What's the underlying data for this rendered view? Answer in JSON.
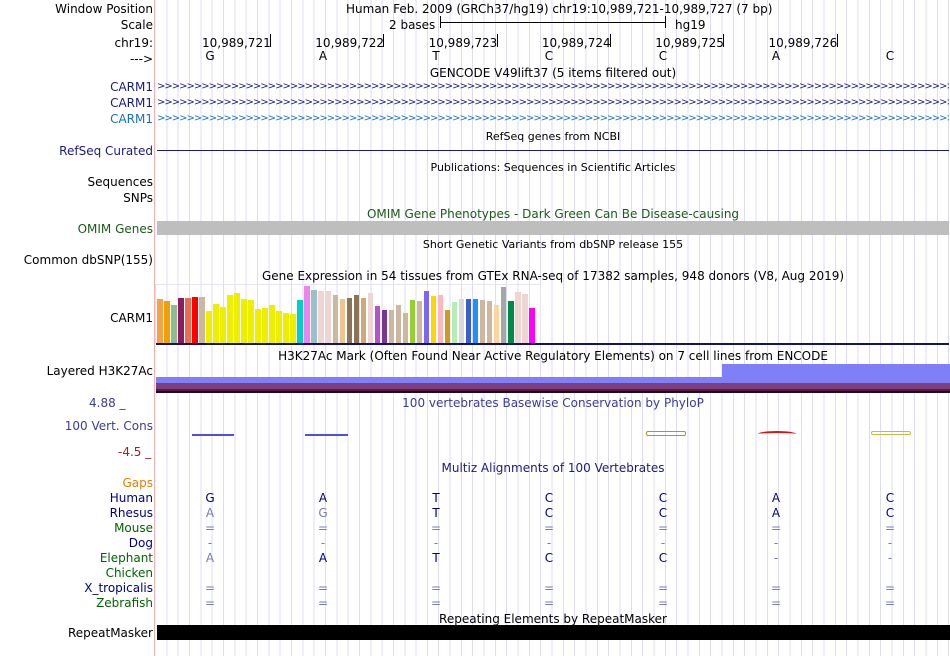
{
  "header": {
    "position_label": "Window Position",
    "position_text": "Human Feb. 2009 (GRCh37/hg19)   chr19:10,989,721-10,989,727 (7 bp)",
    "scale_label": "Scale",
    "scale_text": "2 bases",
    "scale_assembly": "hg19",
    "chrom_label": "chr19:",
    "strand_label": "--->",
    "ticks": [
      "10,989,721",
      "10,989,722",
      "10,989,723",
      "10,989,724",
      "10,989,725",
      "10,989,726"
    ],
    "bases": [
      "G",
      "A",
      "T",
      "C",
      "C",
      "A",
      "C"
    ]
  },
  "gencode": {
    "title": "GENCODE V49lift37 (5 items filtered out)",
    "items": [
      {
        "label": "CARM1",
        "color": "#1a1a80"
      },
      {
        "label": "CARM1",
        "color": "#1a1a80"
      },
      {
        "label": "CARM1",
        "color": "#1a70c0"
      }
    ]
  },
  "refseq": {
    "title": "RefSeq genes from NCBI",
    "label": "RefSeq Curated"
  },
  "pubs": {
    "title": "Publications: Sequences in Scientific Articles",
    "labels": [
      "Sequences",
      "SNPs"
    ]
  },
  "omim": {
    "title": "OMIM Gene Phenotypes - Dark Green Can Be Disease-causing",
    "label": "OMIM Genes"
  },
  "dbsnp": {
    "title": "Short Genetic Variants from dbSNP release 155",
    "label": "Common dbSNP(155)"
  },
  "gtex": {
    "title": "Gene Expression in 54 tissues from GTEx RNA-seq of 17382 samples, 948 donors (V8, Aug 2019)",
    "label": "CARM1",
    "values": [
      46,
      44,
      40,
      47,
      47,
      48,
      48,
      34,
      41,
      38,
      50,
      52,
      46,
      45,
      36,
      37,
      40,
      34,
      32,
      31,
      45,
      59,
      55,
      54,
      54,
      50,
      46,
      47,
      50,
      47,
      52,
      39,
      35,
      35,
      40,
      32,
      45,
      44,
      54,
      49,
      50,
      35,
      43,
      46,
      46,
      46,
      45,
      44,
      40,
      58,
      44,
      53,
      51,
      37
    ],
    "colors": [
      "#f9a04d",
      "#f0a000",
      "#8fbc8f",
      "#8b1c62",
      "#ee6a50",
      "#ff0000",
      "#cdb79e",
      "#eeee00",
      "#eeee00",
      "#eeee00",
      "#eeee00",
      "#eeee00",
      "#eeee00",
      "#eeee00",
      "#eeee00",
      "#eeee00",
      "#eeee00",
      "#eeee00",
      "#eeee00",
      "#eeee00",
      "#00cdcd",
      "#ee82ee",
      "#9ac0cd",
      "#eed5d2",
      "#eed5d2",
      "#cdb79e",
      "#eec591",
      "#8b7355",
      "#8b7355",
      "#cdaa7d",
      "#eed5d2",
      "#b452cd",
      "#7a378b",
      "#cdb79e",
      "#cdb79e",
      "#cdb79e",
      "#9acd32",
      "#cdb79e",
      "#7b68ee",
      "#ffd700",
      "#ffb6c1",
      "#cd9b1d",
      "#b4eeb4",
      "#d9d9d9",
      "#3a5fcd",
      "#1e90ff",
      "#cdb79e",
      "#cdb79e",
      "#ffd39b",
      "#a6a6a6",
      "#008b45",
      "#eed5d2",
      "#eed5d2",
      "#ff00ff"
    ]
  },
  "h3k27ac": {
    "title": "H3K27Ac Mark (Often Found Near Active Regulatory Elements) on 7 cell lines from ENCODE",
    "label": "Layered H3K27Ac"
  },
  "phylop": {
    "title": "100 vertebrates Basewise Conservation by PhyloP",
    "label": "100 Vert. Cons",
    "max": "4.88 _",
    "min": "-4.5 _"
  },
  "multiz": {
    "title": "Multiz Alignments of 100 Vertebrates",
    "gaps_label": "Gaps",
    "species": [
      {
        "name": "Human",
        "color": "#000080",
        "bases": [
          "G",
          "A",
          "T",
          "C",
          "C",
          "A",
          "C"
        ],
        "light": []
      },
      {
        "name": "Rhesus",
        "color": "#000080",
        "bases": [
          "A",
          "G",
          "T",
          "C",
          "C",
          "A",
          "C"
        ],
        "light": [
          0,
          1
        ]
      },
      {
        "name": "Mouse",
        "color": "#006400",
        "bases": [
          "=",
          "=",
          "=",
          "=",
          "=",
          "=",
          "="
        ],
        "light": [
          0,
          1,
          2,
          3,
          4,
          5,
          6
        ]
      },
      {
        "name": "Dog",
        "color": "#000080",
        "bases": [
          "-",
          "-",
          "-",
          "-",
          "-",
          "-",
          "-"
        ],
        "light": [
          0,
          1,
          2,
          3,
          4,
          5,
          6
        ]
      },
      {
        "name": "Elephant",
        "color": "#006400",
        "bases": [
          "A",
          "A",
          "T",
          "C",
          "C",
          "-",
          "-"
        ],
        "light": [
          0,
          5,
          6
        ]
      },
      {
        "name": "Chicken",
        "color": "#006400",
        "bases": [
          "",
          "",
          "",
          "",
          "",
          "",
          ""
        ],
        "light": []
      },
      {
        "name": "X_tropicalis",
        "color": "#000080",
        "bases": [
          "=",
          "=",
          "=",
          "=",
          "=",
          "=",
          "="
        ],
        "light": [
          0,
          1,
          2,
          3,
          4,
          5,
          6
        ]
      },
      {
        "name": "Zebrafish",
        "color": "#006400",
        "bases": [
          "=",
          "=",
          "=",
          "=",
          "=",
          "=",
          "="
        ],
        "light": [
          0,
          1,
          2,
          3,
          4,
          5,
          6
        ]
      }
    ]
  },
  "repeatmasker": {
    "title": "Repeating Elements by RepeatMasker",
    "label": "RepeatMasker"
  }
}
